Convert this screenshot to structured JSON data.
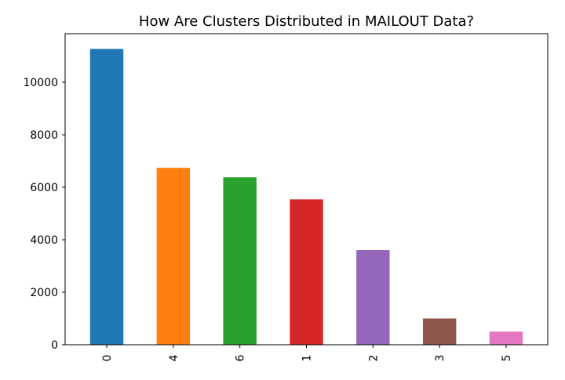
{
  "chart_data": {
    "type": "bar",
    "title": "How Are Clusters Distributed in MAILOUT Data?",
    "xlabel": "",
    "ylabel": "",
    "categories": [
      "0",
      "4",
      "6",
      "1",
      "2",
      "3",
      "5"
    ],
    "values": [
      11270,
      6740,
      6380,
      5540,
      3610,
      1000,
      500
    ],
    "colors": [
      "#1f77b4",
      "#ff7f0e",
      "#2ca02c",
      "#d62728",
      "#9467bd",
      "#8c564b",
      "#e377c2"
    ],
    "ylim": [
      0,
      11850
    ],
    "yticks": [
      0,
      2000,
      4000,
      6000,
      8000,
      10000
    ],
    "grid": false,
    "legend": "none"
  }
}
